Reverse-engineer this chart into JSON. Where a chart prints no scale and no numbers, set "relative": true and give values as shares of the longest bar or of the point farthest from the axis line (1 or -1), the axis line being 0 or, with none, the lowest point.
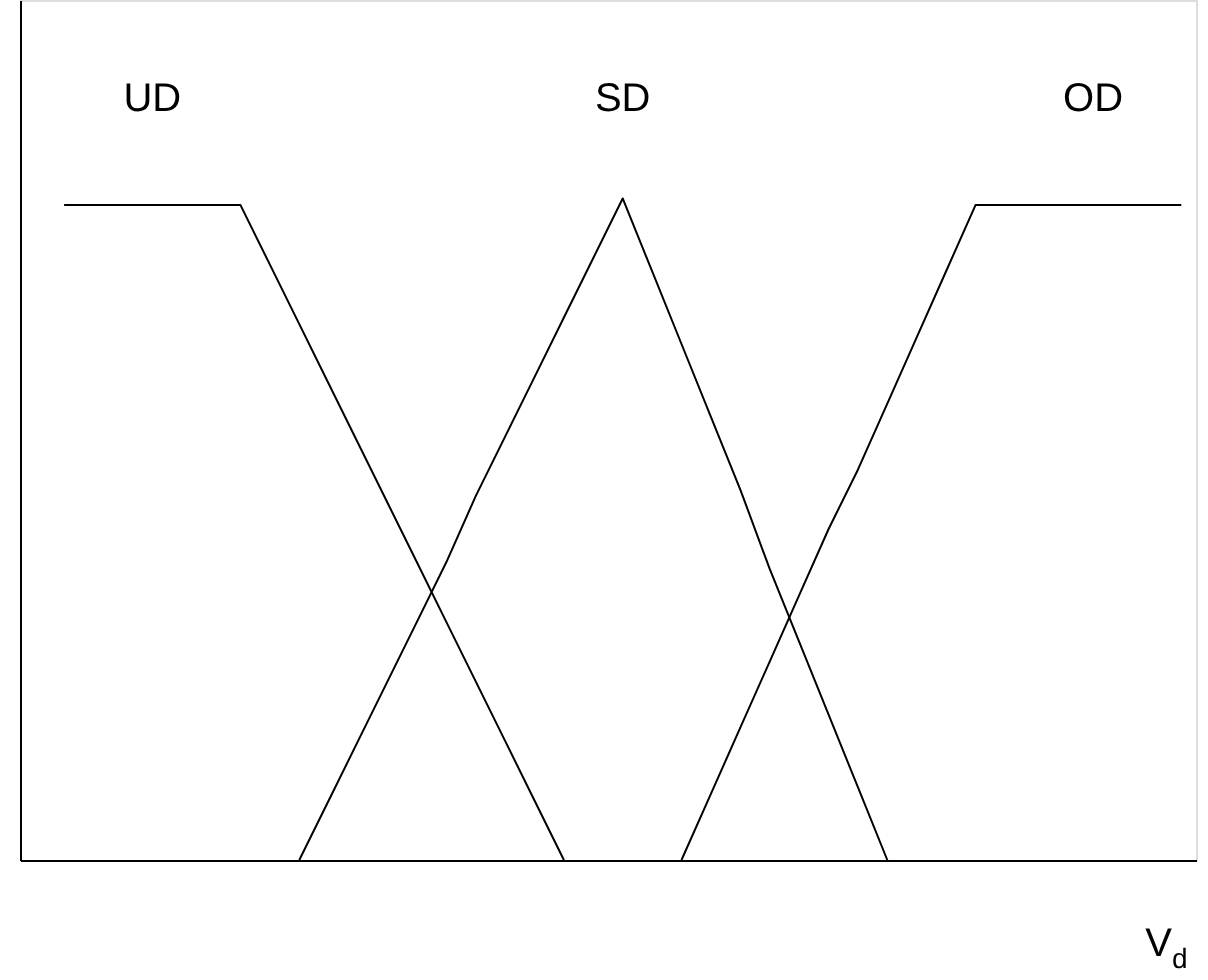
{
  "chart_data": {
    "type": "line",
    "relative": true,
    "legend": false,
    "grid": false,
    "marker": "none",
    "line_style": "solid",
    "xlabel": "V$_{d}$",
    "categories": [
      null,
      null,
      null,
      null,
      null,
      null,
      null,
      null,
      null,
      null,
      null,
      null,
      null,
      null,
      null,
      null,
      null,
      null,
      null,
      null,
      null,
      null,
      null,
      null,
      null,
      null,
      null,
      null,
      null,
      null,
      null,
      null,
      null,
      null,
      null,
      null,
      null,
      null,
      null,
      null
    ],
    "series": [
      {
        "name": "UD",
        "color": "#000000",
        "values": [
          null,
          0.99,
          0.99,
          0.99,
          0.99,
          0.99,
          0.99,
          0.99,
          0.9,
          0.81,
          0.72,
          0.63,
          0.54,
          0.45,
          0.36,
          0.27,
          0.18,
          0.09,
          0,
          null,
          null,
          null,
          null,
          null,
          null,
          null,
          null,
          null,
          null,
          null,
          null,
          null,
          null,
          null,
          null,
          null,
          null,
          null,
          null,
          null
        ]
      },
      {
        "name": "SD",
        "color": "#000000",
        "values": [
          null,
          null,
          null,
          null,
          null,
          null,
          null,
          null,
          null,
          0,
          0.09,
          0.18,
          0.27,
          0.36,
          0.45,
          0.55,
          0.64,
          0.73,
          0.82,
          0.91,
          1,
          0.89,
          0.78,
          0.67,
          0.56,
          0.44,
          0.33,
          0.22,
          0.11,
          0,
          null,
          null,
          null,
          null,
          null,
          null,
          null,
          null,
          null,
          null
        ]
      },
      {
        "name": "OD",
        "color": "#000000",
        "values": [
          null,
          null,
          null,
          null,
          null,
          null,
          null,
          null,
          null,
          null,
          null,
          null,
          null,
          null,
          null,
          null,
          null,
          null,
          null,
          null,
          null,
          null,
          0,
          0.1,
          0.2,
          0.3,
          0.4,
          0.5,
          0.59,
          0.69,
          0.79,
          0.89,
          0.99,
          0.99,
          0.99,
          0.99,
          0.99,
          0.99,
          0.99,
          0.99
        ]
      }
    ]
  }
}
